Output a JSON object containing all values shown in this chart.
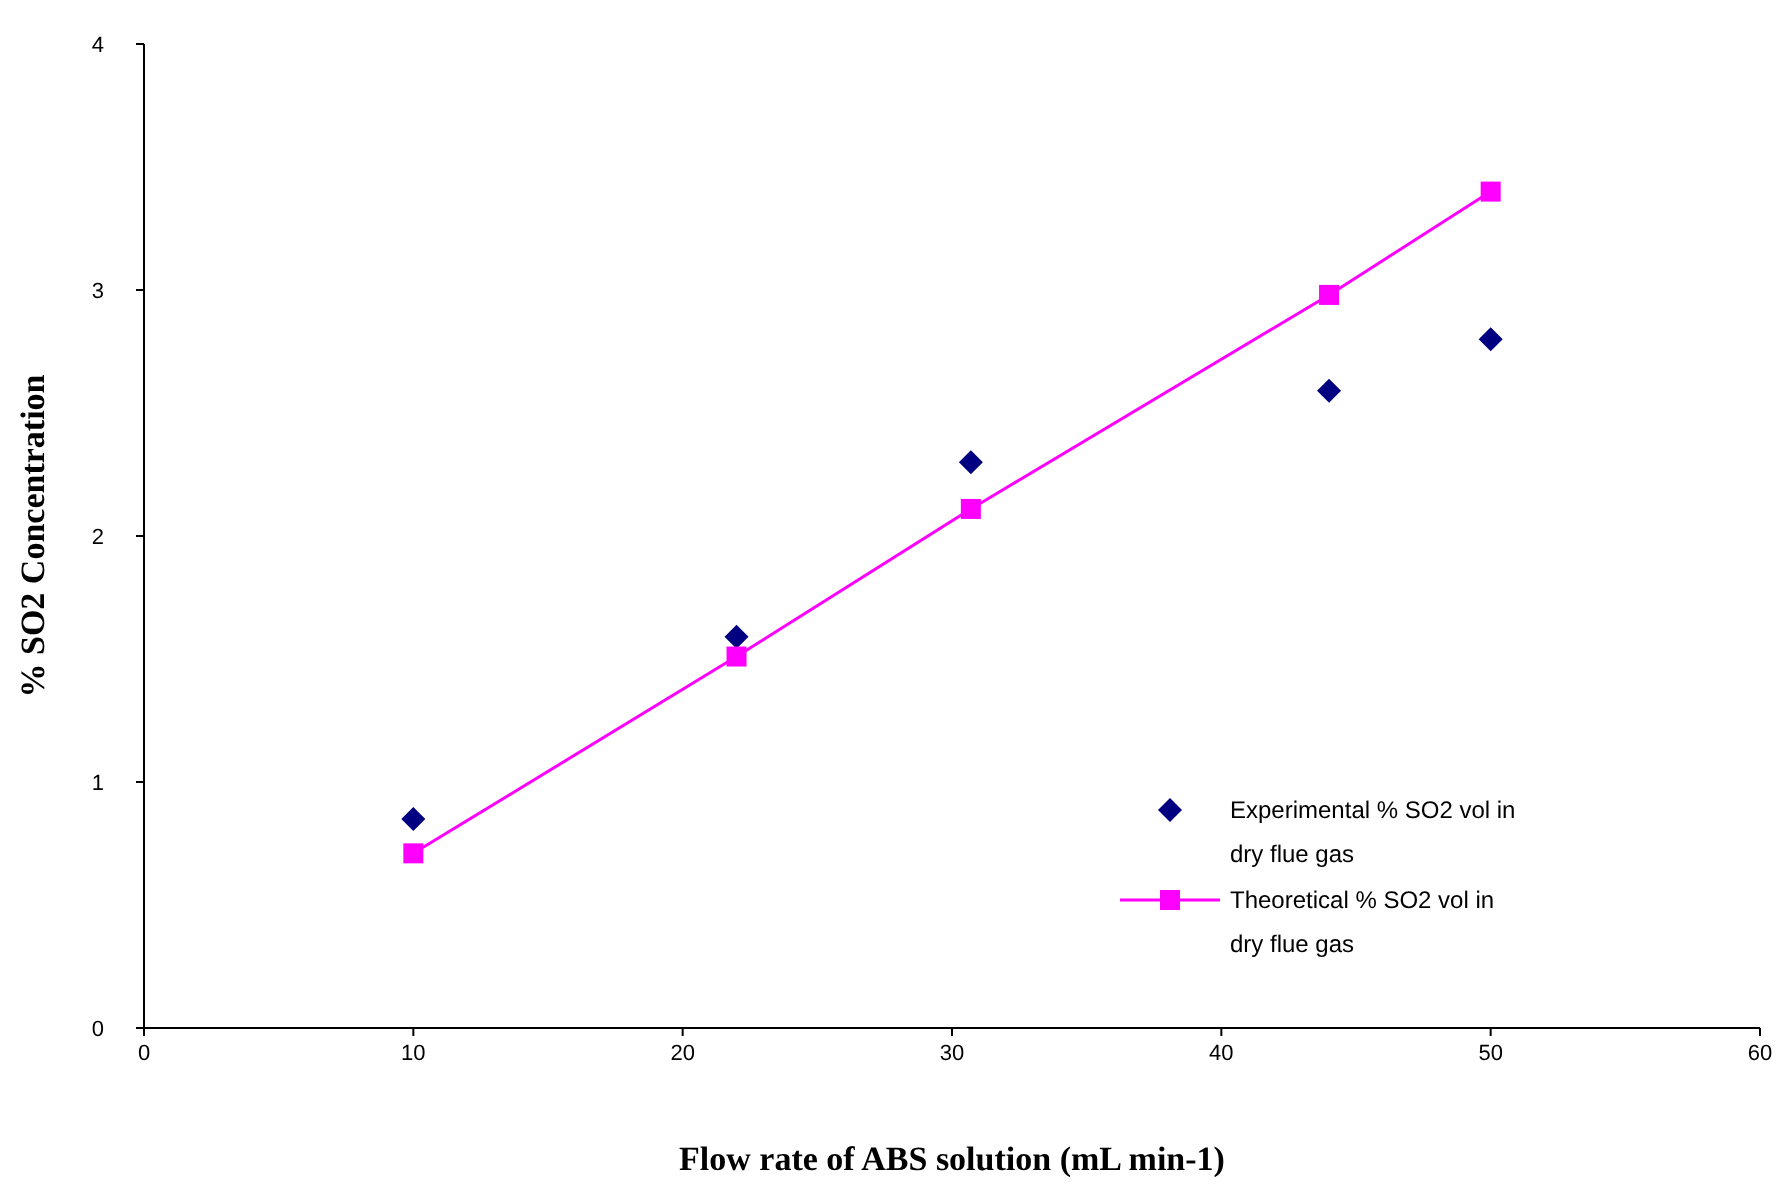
{
  "chart_data": {
    "type": "scatter",
    "xlabel": "Flow rate of ABS solution (mL min-1)",
    "ylabel": "% SO2 Concentration",
    "xlim": [
      0,
      60
    ],
    "ylim": [
      0,
      4
    ],
    "xticks": [
      0,
      10,
      20,
      30,
      40,
      50,
      60
    ],
    "yticks": [
      0,
      1,
      2,
      3,
      4
    ],
    "grid": false,
    "legend": "bottom right",
    "series": [
      {
        "name": "Experimental % SO2 vol in dry flue gas",
        "type": "scatter",
        "marker": "diamond",
        "color": "#000080",
        "x": [
          10,
          22,
          30.7,
          44,
          50
        ],
        "values": [
          0.85,
          1.59,
          2.3,
          2.59,
          2.8
        ]
      },
      {
        "name": "Theoretical % SO2 vol in dry flue gas",
        "type": "line",
        "marker": "square",
        "line_style": "solid",
        "color": "#ff00ff",
        "x": [
          10,
          22,
          30.7,
          44,
          50
        ],
        "values": [
          0.71,
          1.51,
          2.11,
          2.98,
          3.4
        ]
      }
    ]
  }
}
